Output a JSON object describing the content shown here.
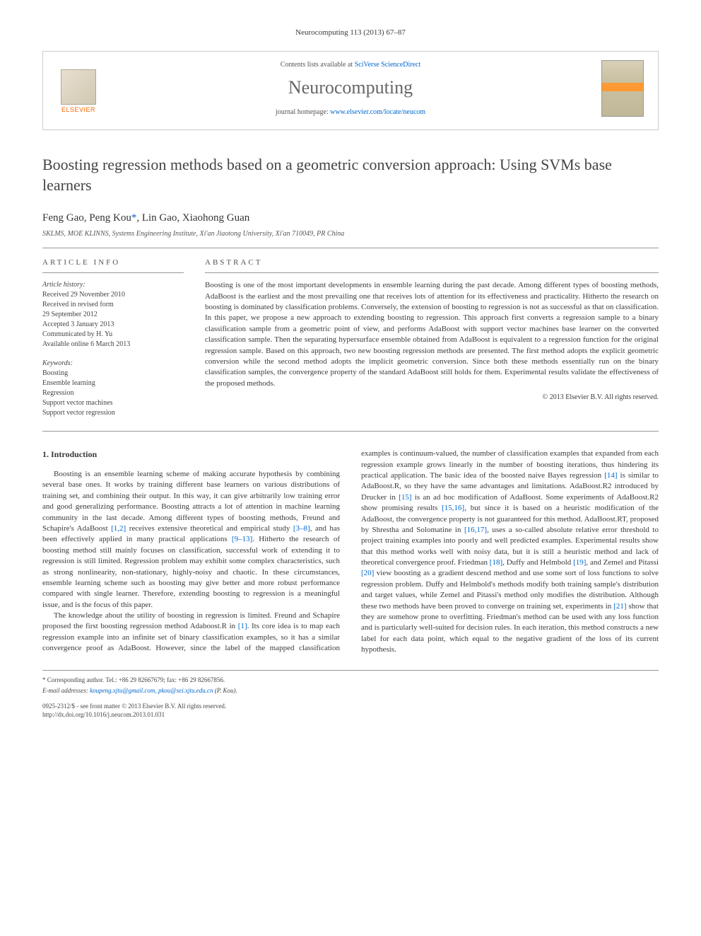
{
  "header": {
    "citation": "Neurocomputing 113 (2013) 67–87"
  },
  "journal_box": {
    "contents_text": "Contents lists available at ",
    "contents_link": "SciVerse ScienceDirect",
    "journal_name": "Neurocomputing",
    "homepage_text": "journal homepage: ",
    "homepage_link": "www.elsevier.com/locate/neucom",
    "elsevier_label": "ELSEVIER"
  },
  "title": "Boosting regression methods based on a geometric conversion approach: Using SVMs base learners",
  "authors": "Feng Gao, Peng Kou",
  "authors_corr_marker": "*",
  "authors_rest": ", Lin Gao, Xiaohong Guan",
  "affiliation": "SKLMS, MOE KLINNS, Systems Engineering Institute, Xi'an Jiaotong University, Xi'an 710049, PR China",
  "article_info": {
    "label": "ARTICLE INFO",
    "history_label": "Article history:",
    "received": "Received 29 November 2010",
    "revised": "Received in revised form",
    "revised_date": "29 September 2012",
    "accepted": "Accepted 3 January 2013",
    "communicated": "Communicated by H. Yu",
    "online": "Available online 6 March 2013",
    "keywords_label": "Keywords:",
    "kw1": "Boosting",
    "kw2": "Ensemble learning",
    "kw3": "Regression",
    "kw4": "Support vector machines",
    "kw5": "Support vector regression"
  },
  "abstract": {
    "label": "ABSTRACT",
    "text": "Boosting is one of the most important developments in ensemble learning during the past decade. Among different types of boosting methods, AdaBoost is the earliest and the most prevailing one that receives lots of attention for its effectiveness and practicality. Hitherto the research on boosting is dominated by classification problems. Conversely, the extension of boosting to regression is not as successful as that on classification. In this paper, we propose a new approach to extending boosting to regression. This approach first converts a regression sample to a binary classification sample from a geometric point of view, and performs AdaBoost with support vector machines base learner on the converted classification sample. Then the separating hypersurface ensemble obtained from AdaBoost is equivalent to a regression function for the original regression sample. Based on this approach, two new boosting regression methods are presented. The first method adopts the explicit geometric conversion while the second method adopts the implicit geometric conversion. Since both these methods essentially run on the binary classification samples, the convergence property of the standard AdaBoost still holds for them. Experimental results validate the effectiveness of the proposed methods.",
    "copyright": "© 2013 Elsevier B.V. All rights reserved."
  },
  "body": {
    "heading": "1. Introduction",
    "p1a": "Boosting is an ensemble learning scheme of making accurate hypothesis by combining several base ones. It works by training different base learners on various distributions of training set, and combining their output. In this way, it can give arbitrarily low training error and good generalizing performance. Boosting attracts a lot of attention in machine learning community in the last decade. Among different types of boosting methods, Freund and Schapire's AdaBoost ",
    "ref1": "[1,2]",
    "p1b": " receives extensive theoretical and empirical study ",
    "ref2": "[3–8]",
    "p1c": ", and has been effectively applied in many practical applications ",
    "ref3": "[9–13]",
    "p1d": ". Hitherto the research of boosting method still mainly focuses on classification, successful work of extending it to regression is still limited. Regression problem may exhibit some complex characteristics, such as strong nonlinearity, non-stationary, highly-noisy and chaotic. In these circumstances, ensemble learning scheme such as boosting may give better and more robust performance compared with single learner. Therefore, extending boosting to regression is a meaningful issue, and is the focus of this paper.",
    "p2a": "The knowledge about the utility of boosting in regression is limited. Freund and Schapire proposed the first boosting regression method Adaboost.R in ",
    "ref4": "[1]",
    "p2b": ". Its core idea is to map each regression example into an infinite set of binary classification examples, so it has a similar convergence proof as AdaBoost. However, since the label of the mapped classification examples is continuum-valued, the number of classification examples that expanded from each regression example grows linearly in the number of boosting iterations, thus hindering its practical application. The basic idea of the boosted naive Bayes regression ",
    "ref5": "[14]",
    "p2c": " is similar to AdaBoost.R, so they have the same advantages and limitations. AdaBoost.R2 introduced by Drucker in ",
    "ref6": "[15]",
    "p2d": " is an ad hoc modification of AdaBoost. Some experiments of AdaBoost.R2 show promising results ",
    "ref7": "[15,16]",
    "p2e": ", but since it is based on a heuristic modification of the AdaBoost, the convergence property is not guaranteed for this method. AdaBoost.RT, proposed by Shrestha and Solomatine in ",
    "ref8": "[16,17]",
    "p2f": ", uses a so-called absolute relative error threshold to project training examples into poorly and well predicted examples. Experimental results show that this method works well with noisy data, but it is still a heuristic method and lack of theoretical convergence proof. Friedman ",
    "ref9": "[18]",
    "p2g": ", Duffy and Helmbold ",
    "ref10": "[19]",
    "p2h": ", and Zemel and Pitassi ",
    "ref11": "[20]",
    "p2i": " view boosting as a gradient descend method and use some sort of loss functions to solve regression problem. Duffy and Helmbold's methods modify both training sample's distribution and target values, while Zemel and Pitassi's method only modifies the distribution. Although these two methods have been proved to converge on training set, experiments in ",
    "ref12": "[21]",
    "p2j": " show that they are somehow prone to overfitting. Friedman's method can be used with any loss function and is particularly well-suited for decision rules. In each iteration, this method constructs a new label for each data point, which equal to the negative gradient of the loss of its current hypothesis."
  },
  "footer": {
    "corr_label": "* Corresponding author. Tel.: +86 29 82667679; fax: +86 29 82667856.",
    "email_label": "E-mail addresses: ",
    "email1": "koupeng.xjtu@gmail.com",
    "email_sep": ", ",
    "email2": "pkou@sei.xjtu.edu.cn",
    "email_suffix": " (P. Kou).",
    "issn": "0925-2312/$ - see front matter © 2013 Elsevier B.V. All rights reserved.",
    "doi": "http://dx.doi.org/10.1016/j.neucom.2013.01.031"
  },
  "colors": {
    "link": "#0066cc",
    "text": "#3a3a3a",
    "elsevier_orange": "#ff6600",
    "border": "#999999"
  }
}
